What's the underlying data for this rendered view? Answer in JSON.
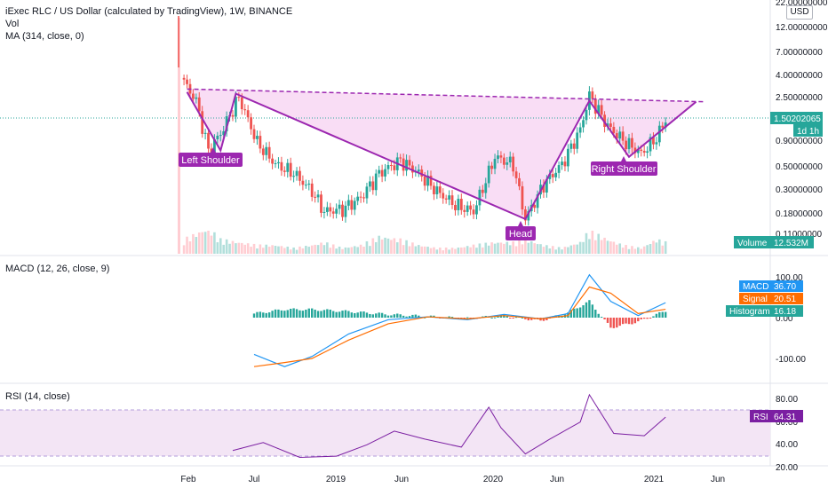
{
  "title": "iExec RLC / US Dollar (calculated by TradingView), 1W, BINANCE",
  "main_legend": [
    "Vol",
    "MA (314, close, 0)"
  ],
  "unit_badge": "USD",
  "price_axis_ticks": [
    "22.00000000",
    "12.00000000",
    "7.00000000",
    "4.00000000",
    "2.50000000",
    "1.50202065",
    "0.90000000",
    "0.50000000",
    "0.30000000",
    "0.18000000",
    "0.11000000"
  ],
  "price_tag": {
    "value": "1.50202065",
    "countdown": "1d 1h",
    "color": "#26a69a"
  },
  "volume_tag": {
    "label": "Volume",
    "value": "12.532M",
    "color": "#26a69a"
  },
  "macd_legend": "MACD (12, 26, close, 9)",
  "macd_axis_ticks": [
    "100.00",
    "0.00",
    "-100.00"
  ],
  "macd_tags": [
    {
      "label": "MACD",
      "value": "36.70",
      "color": "#2196f3"
    },
    {
      "label": "Signal",
      "value": "20.51",
      "color": "#ff6d00"
    },
    {
      "label": "Histogram",
      "value": "16.18",
      "color": "#26a69a"
    }
  ],
  "rsi_legend": "RSI (14, close)",
  "rsi_axis_ticks": [
    "80.00",
    "60.00",
    "40.00",
    "20.00"
  ],
  "rsi_tag": {
    "label": "RSI",
    "value": "64.31",
    "color": "#7b1fa2"
  },
  "x_axis_labels": [
    "Feb",
    "Jul",
    "2019",
    "Jun",
    "2020",
    "Jun",
    "2021",
    "Jun"
  ],
  "pattern_labels": [
    "Left Shoulder",
    "Head",
    "Right Shoulder"
  ],
  "colors": {
    "up": "#26a69a",
    "down": "#ef5350",
    "pattern": "#9c27b0",
    "pattern_fill": "#f8d7f3",
    "macd": "#2196f3",
    "signal": "#ff6d00",
    "rsi": "#7b1fa2",
    "rsi_band": "#f3e5f5"
  },
  "chart_data": [
    {
      "type": "line",
      "name": "price",
      "scale": "log",
      "ylim": [
        0.11,
        22
      ],
      "x_dates": [
        "2018-01-22",
        "2018-02-19",
        "2018-03-19",
        "2018-04-16",
        "2018-05-28",
        "2018-07-09",
        "2018-08-20",
        "2018-10-01",
        "2018-11-12",
        "2018-12-10",
        "2019-01-21",
        "2019-03-04",
        "2019-04-15",
        "2019-06-03",
        "2019-07-15",
        "2019-08-26",
        "2019-10-07",
        "2019-11-18",
        "2020-01-06",
        "2020-02-17",
        "2020-03-16",
        "2020-04-27",
        "2020-06-08",
        "2020-07-20",
        "2020-08-10",
        "2020-09-21",
        "2020-10-26",
        "2020-12-07",
        "2021-01-11",
        "2021-02-01"
      ],
      "close": [
        3.5,
        2.3,
        0.75,
        1.1,
        2.5,
        0.9,
        0.55,
        0.45,
        0.3,
        0.19,
        0.2,
        0.26,
        0.45,
        0.6,
        0.45,
        0.3,
        0.22,
        0.19,
        0.65,
        0.55,
        0.16,
        0.35,
        0.55,
        1.2,
        2.6,
        1.3,
        0.95,
        0.7,
        1.0,
        1.5
      ],
      "volume": [
        5,
        7,
        9,
        5,
        4,
        3,
        3,
        2,
        3,
        4,
        2,
        3,
        6,
        5,
        3,
        2,
        2,
        3,
        4,
        4,
        5,
        3,
        2,
        4,
        8,
        5,
        3,
        2,
        5,
        4
      ]
    },
    {
      "type": "line",
      "name": "pattern",
      "x_dates": [
        "2018-01-29",
        "2018-04-16",
        "2018-05-21",
        "2020-03-16",
        "2020-08-10",
        "2020-11-09",
        "2021-04-12"
      ],
      "y": [
        2.8,
        0.75,
        2.7,
        0.16,
        2.3,
        0.65,
        2.25
      ]
    },
    {
      "type": "line",
      "name": "neckline",
      "x_dates": [
        "2018-01-29",
        "2021-05-03"
      ],
      "y": [
        3.0,
        2.25
      ]
    },
    {
      "type": "line",
      "name": "MACD",
      "ylim": [
        -150,
        130
      ],
      "x_dates": [
        "2018-07-02",
        "2018-09-10",
        "2018-11-12",
        "2019-02-04",
        "2019-05-06",
        "2019-08-05",
        "2019-11-04",
        "2020-01-27",
        "2020-04-20",
        "2020-06-22",
        "2020-08-10",
        "2020-09-28",
        "2020-11-30",
        "2021-02-01"
      ],
      "macd": [
        -90,
        -120,
        -95,
        -40,
        -5,
        2,
        -5,
        8,
        -3,
        10,
        105,
        40,
        5,
        36.7
      ],
      "signal": [
        -120,
        -110,
        -100,
        -55,
        -15,
        2,
        -3,
        5,
        -3,
        5,
        75,
        60,
        10,
        20.51
      ],
      "histogram": [
        10,
        20,
        20,
        15,
        8,
        3,
        -2,
        5,
        -8,
        12,
        40,
        -25,
        -10,
        16.18
      ]
    },
    {
      "type": "line",
      "name": "RSI",
      "ylim": [
        20,
        80
      ],
      "x_dates": [
        "2018-05-14",
        "2018-07-23",
        "2018-10-15",
        "2019-01-07",
        "2019-03-18",
        "2019-05-20",
        "2019-07-29",
        "2019-10-21",
        "2019-12-23",
        "2020-01-20",
        "2020-03-16",
        "2020-05-11",
        "2020-07-20",
        "2020-08-10",
        "2020-10-05",
        "2020-12-14",
        "2021-02-01"
      ],
      "values": [
        35,
        42,
        29,
        30,
        40,
        52,
        45,
        38,
        73,
        55,
        32,
        45,
        60,
        84,
        50,
        48,
        64.31
      ]
    }
  ]
}
